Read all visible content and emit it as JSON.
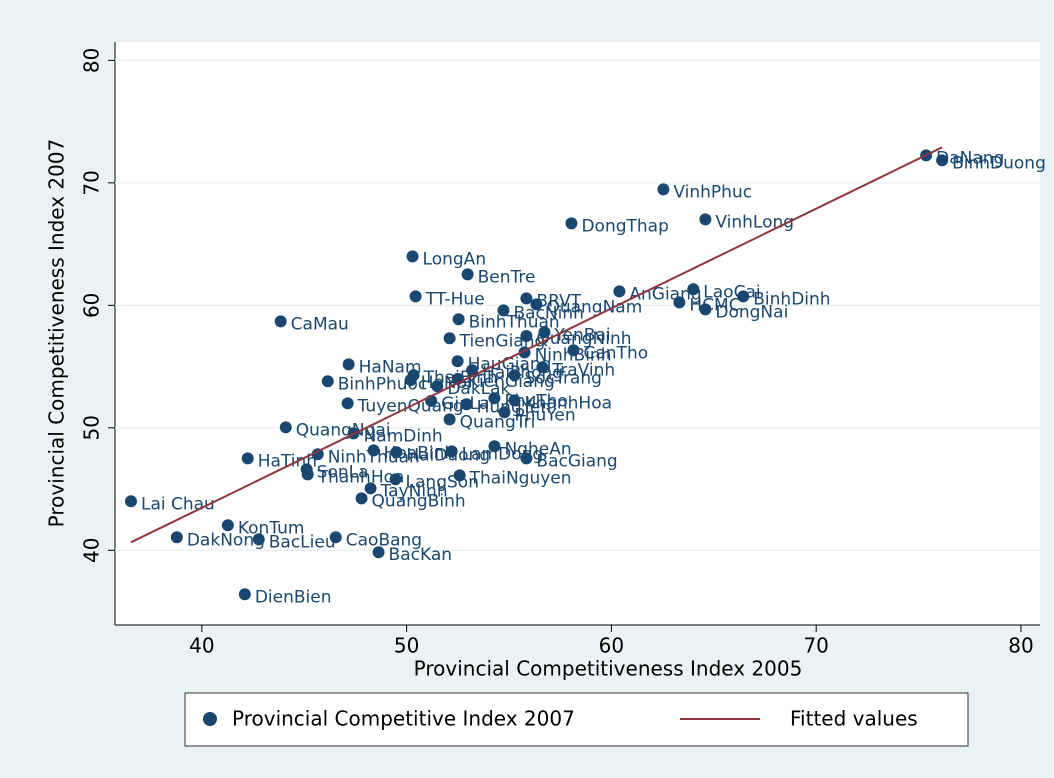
{
  "chart_data": {
    "type": "scatter",
    "x_label": "Provincial Competitiveness Index 2005",
    "y_label": "Provincial Competitiveness Index 2007",
    "xlim": [
      35.76,
      80.93
    ],
    "ylim": [
      33.9,
      81.5
    ],
    "xticks": [
      40,
      50,
      60,
      70,
      80
    ],
    "yticks": [
      40,
      50,
      60,
      70,
      80
    ],
    "grid": true,
    "legend": "bottom",
    "series": [
      {
        "name": "Provincial Competitive Index 2007",
        "type": "scatter",
        "color": "#1a476f",
        "labels": [
          "DaNang",
          "BinhDuong",
          "VinhPhuc",
          "DongThap",
          "VinhLong",
          "LongAn",
          "BenTre",
          "TT-Hue",
          "AnGiang",
          "LaoCai",
          "HCMC",
          "BinhDinh",
          "DongNai",
          "BRVT",
          "QuangNam",
          "BacNinh",
          "CaMau",
          "BinhThuan",
          "TienGiang",
          "QuangNinh",
          "YenBai",
          "CanTho",
          "NinhBinh",
          "HaNam",
          "HauGiang",
          "TraVinh",
          "SocTrang",
          "ThaiBinh",
          "HaNoi",
          "BinhPhuoc",
          "DakLak",
          "KienGiang",
          "HaiPhong",
          "TuyenQuang",
          "GiaLai",
          "KhanhHoa",
          "PhuTho",
          "PhuYen",
          "QuangTri",
          "HungYen",
          "QuangNgai",
          "NamDinh",
          "HoaBinh",
          "HaiDuong",
          "LamDong",
          "NgheAn",
          "BacGiang",
          "HaTinh",
          "NinhThuan",
          "SonLa",
          "ThanhHoa",
          "LangSon",
          "TayNinh",
          "ThaiNguyen",
          "QuangBinh",
          "Lai Chau",
          "KonTum",
          "DakNong",
          "BacLieu",
          "CaoBang",
          "BacKan",
          "DienBien"
        ],
        "x": [
          75.37,
          76.15,
          62.54,
          58.05,
          64.59,
          50.29,
          52.98,
          50.44,
          60.39,
          64.0,
          63.32,
          66.44,
          64.59,
          55.85,
          56.34,
          54.73,
          43.85,
          52.54,
          52.1,
          55.85,
          56.73,
          58.15,
          55.76,
          47.17,
          52.49,
          56.63,
          55.27,
          50.34,
          50.2,
          46.15,
          51.5,
          52.5,
          53.2,
          47.12,
          51.2,
          55.27,
          54.29,
          54.78,
          52.1,
          52.93,
          44.1,
          47.41,
          48.39,
          49.5,
          52.2,
          54.29,
          55.85,
          42.24,
          45.66,
          45.12,
          45.17,
          49.46,
          48.24,
          52.59,
          47.8,
          36.54,
          41.27,
          38.78,
          42.78,
          46.54,
          48.63,
          42.1
        ],
        "values": [
          72.24,
          71.84,
          69.47,
          66.69,
          67.02,
          64.0,
          62.53,
          60.73,
          61.14,
          61.31,
          60.24,
          60.73,
          59.67,
          60.57,
          60.08,
          59.59,
          58.69,
          58.86,
          57.31,
          57.5,
          57.8,
          56.33,
          56.16,
          55.18,
          55.43,
          54.94,
          54.29,
          54.3,
          53.9,
          53.8,
          53.4,
          54.0,
          54.7,
          52.0,
          52.2,
          52.24,
          52.41,
          51.27,
          50.69,
          51.92,
          50.04,
          49.55,
          48.16,
          48.0,
          48.08,
          48.49,
          47.5,
          47.5,
          47.84,
          46.61,
          46.2,
          45.8,
          45.06,
          46.12,
          44.24,
          44.0,
          42.04,
          41.06,
          40.9,
          41.06,
          39.84,
          36.41
        ]
      },
      {
        "name": "Fitted values",
        "type": "line",
        "color": "#90353b",
        "x": [
          36.54,
          76.15
        ],
        "values": [
          40.65,
          72.9
        ]
      }
    ]
  }
}
